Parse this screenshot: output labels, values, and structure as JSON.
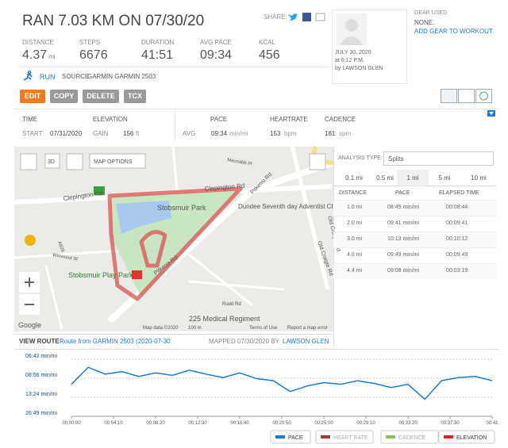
{
  "header": {
    "title": "RAN 7.03 KM ON 07/30/20",
    "share": "SHARE:"
  },
  "stats": [
    {
      "label": "DISTANCE",
      "value": "4.37",
      "unit": "mi"
    },
    {
      "label": "STEPS",
      "value": "6676"
    },
    {
      "label": "DURATION",
      "value": "41:51"
    },
    {
      "label": "AVG PACE",
      "value": "09:34"
    },
    {
      "label": "KCAL",
      "value": "456"
    }
  ],
  "activity": {
    "type": "RUN",
    "source_label": "SOURCE",
    "source": "GARMIN GARMIN 2503"
  },
  "profile": {
    "date": "JULY 30, 2020",
    "time": "at 6:12 P.M.",
    "user": "by LAWSON GLEN"
  },
  "gear": {
    "label": "GEAR USED",
    "value": "NONE.",
    "link": "ADD GEAR TO WORKOUT."
  },
  "buttons": [
    "EDIT",
    "COPY",
    "DELETE",
    "TCX"
  ],
  "info": {
    "time": "TIME",
    "start_label": "START",
    "start": "07/31/2020",
    "elevation": "ELEVATION",
    "gain_label": "GAIN",
    "gain": "156",
    "gain_unit": "ft",
    "pace": "PACE",
    "avg_label": "AVG",
    "avg": "09:34",
    "avg_unit": "min/mi",
    "heartrate": "HEARTRATE",
    "hr": "153",
    "hr_unit": "bpm",
    "cadence": "CADENCE",
    "cad": "181",
    "cad_unit": "spm"
  },
  "map": {
    "options": "MAP OPTIONS",
    "mode": "3D",
    "labels": [
      "Clepington Rd",
      "Clepington Rd",
      "Stobsmuir Park",
      "Dundee Seventh day Adventist Church",
      "Pitkerro Rd",
      "Pitkerro Rd",
      "Old Craigie Rd",
      "Old Craigie Rd",
      "Stobsmuir Play Park",
      "225 Medical Regiment",
      "Macnabb Pl",
      "A929",
      "Winwood St",
      "Rodd Rd",
      "Map data ©2020",
      "100 m",
      "Terms of Use",
      "Report a map error",
      "Google"
    ]
  },
  "analysis": {
    "label": "ANALYSIS TYPE:",
    "select": "Splits",
    "tabs": [
      "0.1 mi",
      "0.5 mi",
      "1 mi",
      "5 mi",
      "10 mi"
    ],
    "columns": [
      "DISTANCE",
      "PACE",
      "ELAPSED TIME"
    ],
    "rows": [
      [
        "1.0 mi",
        "08:45 min/mi",
        "00:08:44"
      ],
      [
        "2.0 mi",
        "09:41 min/mi",
        "00:09:41"
      ],
      [
        "3.0 mi",
        "10:13 min/mi",
        "00:10:12"
      ],
      [
        "4.0 mi",
        "09:49 min/mi",
        "00:09:49"
      ],
      [
        "4.4 mi",
        "09:08 min/mi",
        "00:03:19"
      ]
    ]
  },
  "route": {
    "label": "VIEW ROUTE",
    "link": "Route from GARMIN 2503 (2020-07-30",
    "mapped": "MAPPED 07/30/2020 BY",
    "user": "LAWSON GLEN"
  },
  "chart_data": {
    "type": "line",
    "yscale": "reciprocal",
    "grid": true,
    "x": [
      0,
      100,
      200,
      300,
      400,
      500,
      600,
      700,
      800,
      900,
      1000,
      1100,
      1200,
      1300,
      1400,
      1500,
      1600,
      1700,
      1800,
      1900,
      2000,
      2100,
      2200,
      2300,
      2400,
      2500
    ],
    "series": [
      {
        "name": "PACE",
        "color": "#1a7ad4",
        "values": [
          600,
          450,
          500,
          480,
          520,
          490,
          510,
          470,
          500,
          530,
          490,
          540,
          560,
          700,
          620,
          580,
          600,
          560,
          590,
          640,
          600,
          850,
          560,
          530,
          520,
          560
        ]
      }
    ],
    "xlim": [
      0,
      2500
    ],
    "xticks": [
      {
        "value": 0,
        "label": "00:00:00"
      },
      {
        "value": 250,
        "label": "00:04:10"
      },
      {
        "value": 500,
        "label": "00:08:20"
      },
      {
        "value": 750,
        "label": "00:12:30"
      },
      {
        "value": 1000,
        "label": "00:16:40"
      },
      {
        "value": 1250,
        "label": "00:20:50"
      },
      {
        "value": 1500,
        "label": "00:25:00"
      },
      {
        "value": 1750,
        "label": "00:29:10"
      },
      {
        "value": 2000,
        "label": "00:33:20"
      },
      {
        "value": 2250,
        "label": "00:37:30"
      },
      {
        "value": 2500,
        "label": "00:41"
      }
    ],
    "ylim": [
      402,
      1609
    ],
    "yticks": [
      {
        "value": 402,
        "label": "06:42 min/mi"
      },
      {
        "value": 536,
        "label": "08:56 min/mi"
      },
      {
        "value": 804,
        "label": "13:24 min/mi"
      },
      {
        "value": 1609,
        "label": "26:49 min/mi"
      }
    ],
    "toggles": [
      {
        "name": "HEART RATE",
        "color": "#a33a3a"
      },
      {
        "name": "CADENCE",
        "color": "#8bc34a"
      },
      {
        "name": "ELEVATION",
        "color": "#e02020"
      }
    ]
  }
}
